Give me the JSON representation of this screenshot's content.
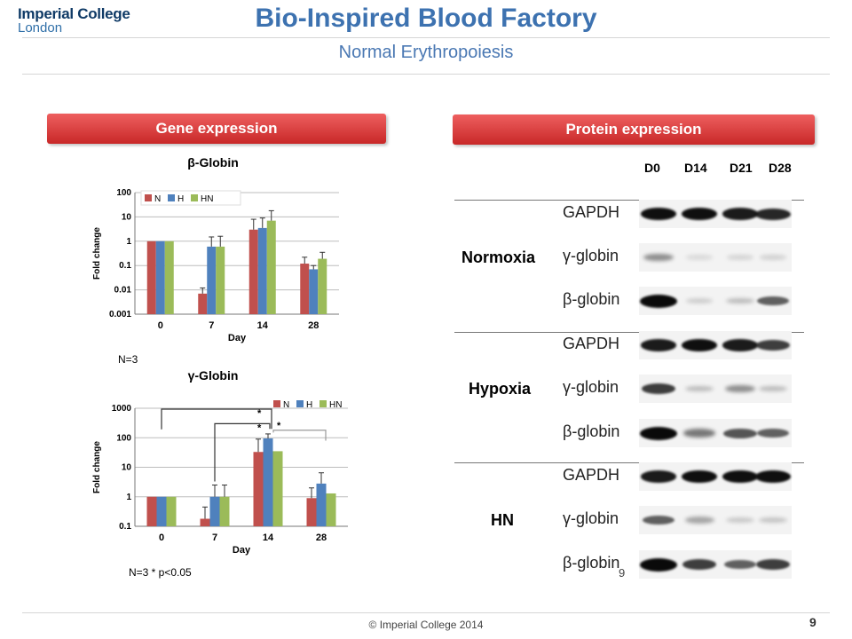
{
  "header": {
    "logo_line1": "Imperial College",
    "logo_line2": "London",
    "title": "Bio-Inspired Blood Factory",
    "subtitle": "Normal Erythropoiesis"
  },
  "panels": {
    "gene_expression_label": "Gene expression",
    "protein_expression_label": "Protein expression"
  },
  "chart_data": [
    {
      "type": "bar",
      "title": "β-Globin",
      "xlabel": "Day",
      "ylabel": "Fold change",
      "yscale": "log",
      "ylim": [
        0.001,
        100
      ],
      "yticks": [
        "100",
        "10",
        "1",
        "0.1",
        "0.01",
        "0.001"
      ],
      "categories": [
        "0",
        "7",
        "14",
        "28"
      ],
      "legend": "top-left",
      "series": [
        {
          "name": "N",
          "color": "#c0504d",
          "values": [
            1,
            0.007,
            3,
            0.12
          ],
          "err_high": [
            1,
            0.012,
            8,
            0.22
          ]
        },
        {
          "name": "H",
          "color": "#4f81bd",
          "values": [
            1,
            0.6,
            3.5,
            0.07
          ],
          "err_high": [
            1,
            1.5,
            9,
            0.1
          ]
        },
        {
          "name": "HN",
          "color": "#9bbb59",
          "values": [
            1,
            0.6,
            7,
            0.19
          ],
          "err_high": [
            1,
            1.6,
            18,
            0.35
          ]
        }
      ]
    },
    {
      "type": "bar",
      "title": "γ-Globin",
      "xlabel": "Day",
      "ylabel": "Fold change",
      "yscale": "log",
      "ylim": [
        0.1,
        1000
      ],
      "yticks": [
        "1000",
        "100",
        "10",
        "1",
        "0.1"
      ],
      "categories": [
        "0",
        "7",
        "14",
        "28"
      ],
      "legend": "top-right",
      "series": [
        {
          "name": "N",
          "color": "#c0504d",
          "values": [
            1,
            0.18,
            33,
            0.9
          ],
          "err_high": [
            1,
            0.45,
            90,
            2
          ]
        },
        {
          "name": "H",
          "color": "#4f81bd",
          "values": [
            1,
            1,
            95,
            2.8
          ],
          "err_high": [
            1,
            2.5,
            135,
            6.5
          ]
        },
        {
          "name": "HN",
          "color": "#9bbb59",
          "values": [
            1,
            1,
            35,
            1.3
          ],
          "err_high": [
            1,
            2.5,
            35,
            1.3
          ]
        }
      ],
      "annotations": [
        "*",
        "*",
        "*"
      ]
    }
  ],
  "notes": {
    "beta_n": "N=3",
    "gamma_n": "N=3  * p<0.05"
  },
  "western_blot": {
    "lanes": [
      "D0",
      "D14",
      "D21",
      "D28"
    ],
    "groups": [
      {
        "condition": "Normoxia",
        "rows": [
          {
            "protein": "GAPDH",
            "intensity": [
              0.9,
              0.9,
              0.85,
              0.8
            ]
          },
          {
            "protein": "γ-globin",
            "intensity": [
              0.35,
              0.03,
              0.05,
              0.06
            ]
          },
          {
            "protein": "β-globin",
            "intensity": [
              1.0,
              0.08,
              0.15,
              0.55
            ]
          }
        ]
      },
      {
        "condition": "Hypoxia",
        "rows": [
          {
            "protein": "GAPDH",
            "intensity": [
              0.85,
              0.9,
              0.85,
              0.7
            ]
          },
          {
            "protein": "γ-globin",
            "intensity": [
              0.7,
              0.15,
              0.35,
              0.15
            ]
          },
          {
            "protein": "β-globin",
            "intensity": [
              1.0,
              0.45,
              0.6,
              0.55
            ]
          }
        ]
      },
      {
        "condition": "HN",
        "rows": [
          {
            "protein": "GAPDH",
            "intensity": [
              0.85,
              0.9,
              0.9,
              0.9
            ]
          },
          {
            "protein": "γ-globin",
            "intensity": [
              0.55,
              0.25,
              0.1,
              0.12
            ]
          },
          {
            "protein": "β-globin",
            "intensity": [
              1.0,
              0.7,
              0.55,
              0.7
            ]
          }
        ]
      }
    ],
    "stray_mark": "9"
  },
  "footer": {
    "copyright": "© Imperial College 2014",
    "page_number": "9"
  }
}
